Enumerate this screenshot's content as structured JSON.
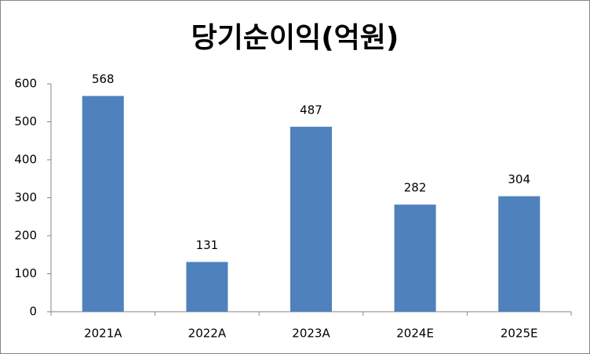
{
  "chart_data": {
    "type": "bar",
    "title": "당기순이익(억원)",
    "categories": [
      "2021A",
      "2022A",
      "2023A",
      "2024E",
      "2025E"
    ],
    "values": [
      568,
      131,
      487,
      282,
      304
    ],
    "color": "#4f81bd",
    "ylim": [
      0,
      600
    ],
    "yticks": [
      0,
      100,
      200,
      300,
      400,
      500,
      600
    ],
    "grid": false
  }
}
